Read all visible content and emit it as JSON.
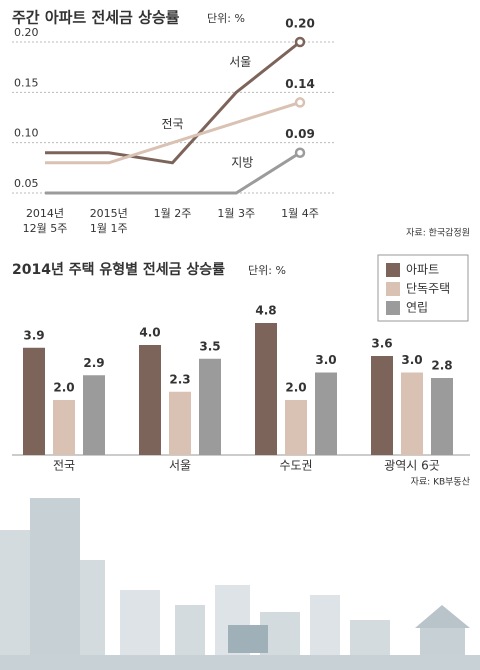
{
  "chart_data": [
    {
      "type": "line",
      "title": "주간 아파트 전세금 상승률",
      "unit": "단위: %",
      "categories": [
        "2014년\n12월 5주",
        "2015년\n1월 1주",
        "1월 2주",
        "1월 3주",
        "1월 4주"
      ],
      "series": [
        {
          "name": "서울",
          "color": "#7d645b",
          "values": [
            0.09,
            0.09,
            0.08,
            0.15,
            0.2
          ],
          "value_labels": [
            null,
            null,
            null,
            null,
            "0.20"
          ]
        },
        {
          "name": "전국",
          "color": "#d9c2b3",
          "values": [
            0.08,
            0.08,
            0.1,
            0.12,
            0.14
          ],
          "value_labels": [
            null,
            null,
            null,
            null,
            "0.14"
          ]
        },
        {
          "name": "지방",
          "color": "#9b9b9b",
          "values": [
            0.05,
            0.05,
            0.05,
            0.05,
            0.09
          ],
          "value_labels": [
            null,
            null,
            null,
            null,
            "0.09"
          ]
        }
      ],
      "ylim": [
        0.05,
        0.2
      ],
      "yticks": [
        {
          "value": 0.05,
          "label": "0.05"
        },
        {
          "value": 0.1,
          "label": "0.10"
        },
        {
          "value": 0.15,
          "label": "0.15"
        },
        {
          "value": 0.2,
          "label": "0.20"
        }
      ],
      "grid": true,
      "source": "자료: 한국감정원"
    },
    {
      "type": "bar",
      "title": "2014년 주택 유형별 전세금 상승률",
      "unit": "단위: %",
      "categories": [
        "전국",
        "서울",
        "수도권",
        "광역시 6곳"
      ],
      "series": [
        {
          "name": "아파트",
          "color": "#7d645b",
          "values": [
            3.9,
            4.0,
            4.8,
            3.6
          ],
          "value_labels": [
            "3.9",
            "4.0",
            "4.8",
            "3.6"
          ]
        },
        {
          "name": "단독주택",
          "color": "#d9c2b3",
          "values": [
            2.0,
            2.3,
            2.0,
            3.0
          ],
          "value_labels": [
            "2.0",
            "2.3",
            "2.0",
            "3.0"
          ]
        },
        {
          "name": "연립",
          "color": "#9b9b9b",
          "values": [
            2.9,
            3.5,
            3.0,
            2.8
          ],
          "value_labels": [
            "2.9",
            "3.5",
            "3.0",
            "2.8"
          ]
        }
      ],
      "legend": "top-right",
      "source": "자료: KB부동산"
    }
  ]
}
